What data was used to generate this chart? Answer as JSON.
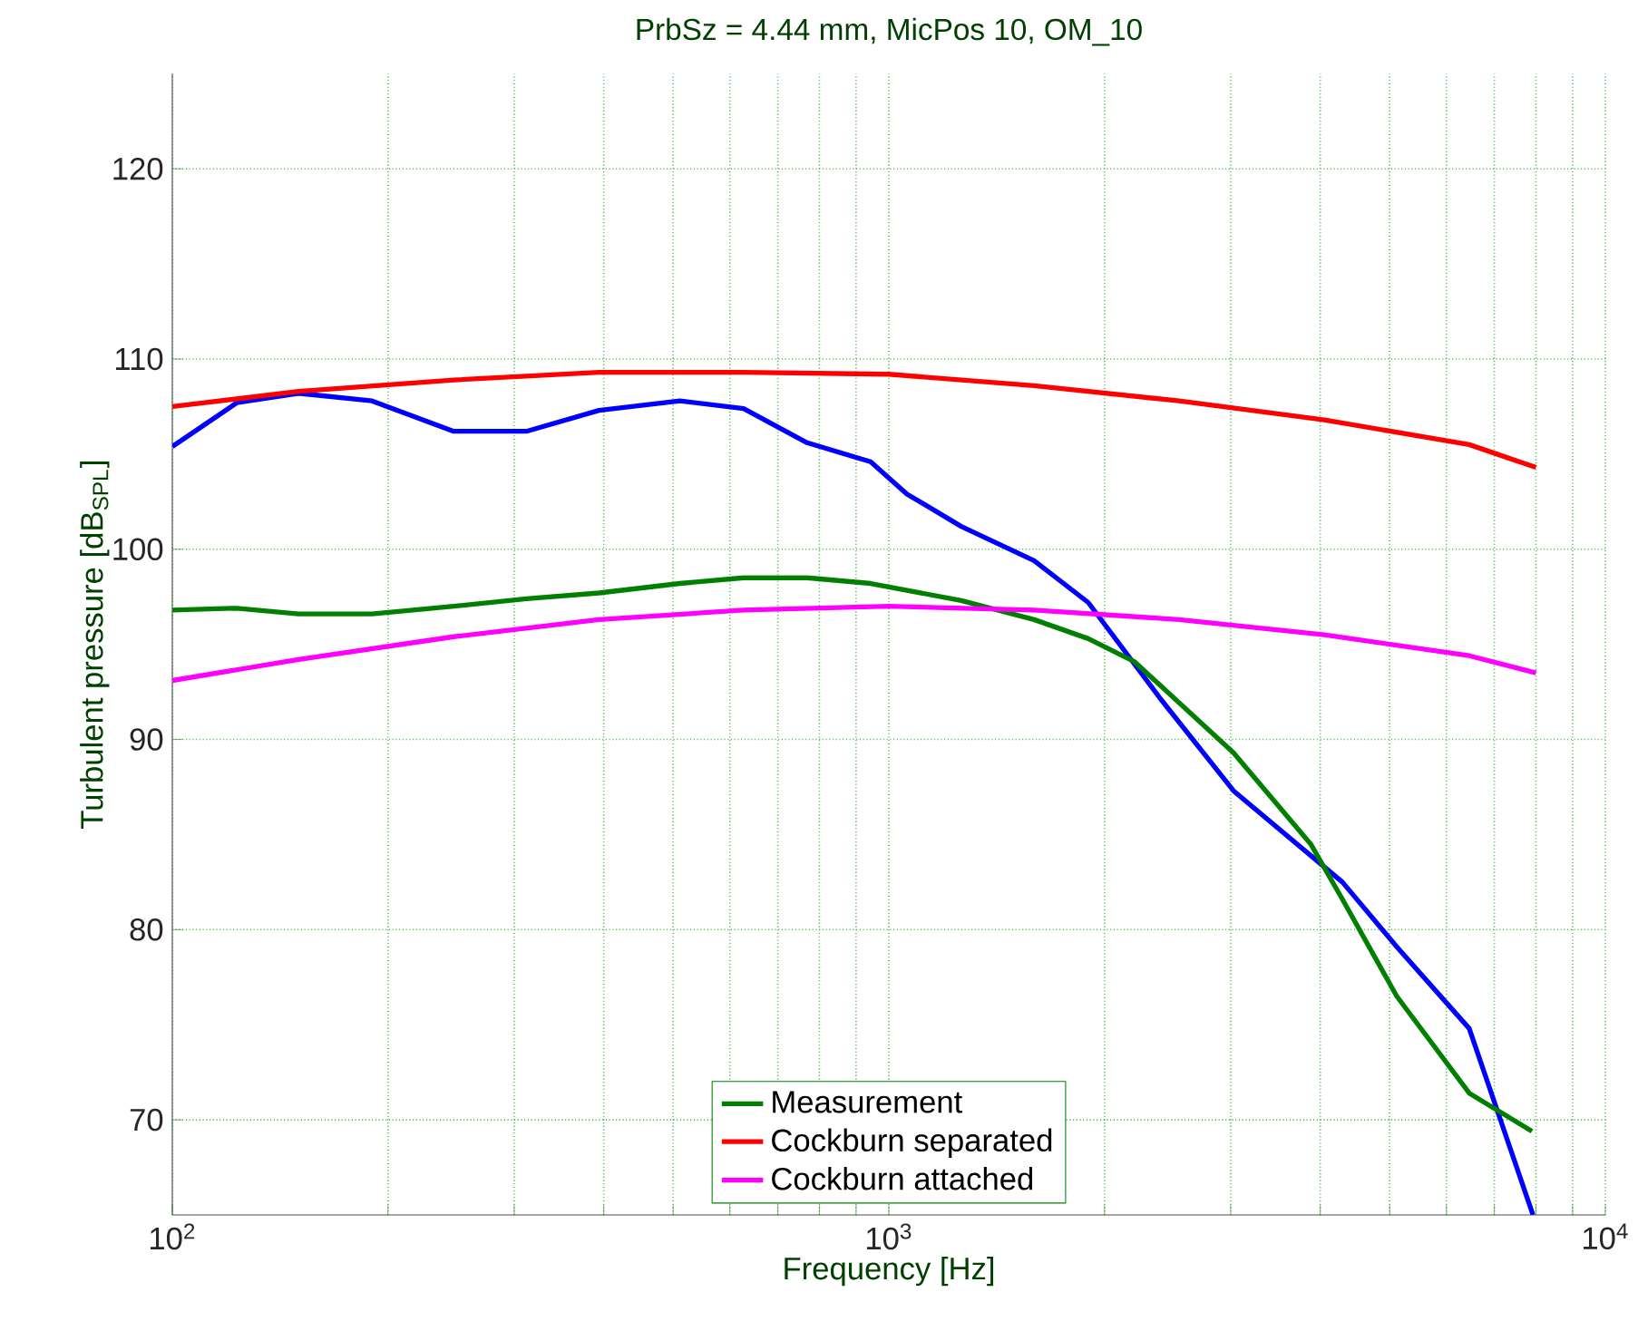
{
  "chart_data": {
    "type": "line",
    "title": "PrbSz = 4.44 mm, MicPos 10, OM_10",
    "xlabel": "Frequency [Hz]",
    "ylabel": "Turbulent pressure [dB$_{SPL}$]",
    "log": "x",
    "xlim": [
      100,
      10000
    ],
    "xticks": [
      {
        "value": 100,
        "label": "10$^{2}$"
      },
      {
        "value": 200,
        "label": null
      },
      {
        "value": 300,
        "label": null
      },
      {
        "value": 400,
        "label": null
      },
      {
        "value": 500,
        "label": null
      },
      {
        "value": 600,
        "label": null
      },
      {
        "value": 700,
        "label": null
      },
      {
        "value": 800,
        "label": null
      },
      {
        "value": 900,
        "label": null
      },
      {
        "value": 1000,
        "label": "10$^{3}$"
      },
      {
        "value": 2000,
        "label": null
      },
      {
        "value": 3000,
        "label": null
      },
      {
        "value": 4000,
        "label": null
      },
      {
        "value": 5000,
        "label": null
      },
      {
        "value": 6000,
        "label": null
      },
      {
        "value": 7000,
        "label": null
      },
      {
        "value": 8000,
        "label": null
      },
      {
        "value": 9000,
        "label": null
      },
      {
        "value": 10000,
        "label": "10$^{4}$"
      }
    ],
    "ylim": [
      65,
      125
    ],
    "yticks": [
      70,
      80,
      90,
      100,
      110,
      120
    ],
    "grid": true,
    "legend": "bottom",
    "line_style": "solid",
    "marker": "none",
    "series": [
      {
        "color": "#0000ff",
        "x": [
          100,
          123,
          150,
          190,
          247,
          312,
          394,
          511,
          627,
          769,
          943,
          1060,
          1262,
          1595,
          1898,
          2398,
          3027,
          4295,
          5115,
          6457,
          7925
        ],
        "values": [
          105.4,
          107.7,
          108.2,
          107.8,
          106.2,
          106.2,
          107.3,
          107.8,
          107.4,
          105.6,
          104.6,
          102.9,
          101.2,
          99.4,
          97.2,
          92.1,
          87.3,
          82.5,
          79.1,
          74.8,
          65
        ]
      },
      {
        "name": "Measurement",
        "color": "#007f00",
        "x": [
          100,
          123,
          150,
          190,
          247,
          312,
          394,
          511,
          627,
          769,
          943,
          1262,
          1595,
          1898,
          2200,
          3027,
          3880,
          4295,
          5115,
          6457,
          7900
        ],
        "values": [
          96.8,
          96.9,
          96.6,
          96.6,
          97.0,
          97.4,
          97.7,
          98.2,
          98.5,
          98.5,
          98.2,
          97.3,
          96.3,
          95.3,
          94.1,
          89.3,
          84.5,
          81.6,
          76.5,
          71.4,
          69.4
        ]
      },
      {
        "name": "Cockburn separated",
        "color": "#ff0000",
        "x": [
          100,
          150,
          247,
          394,
          627,
          1000,
          1595,
          2541,
          4053,
          6457,
          8000
        ],
        "values": [
          107.5,
          108.3,
          108.9,
          109.3,
          109.3,
          109.2,
          108.6,
          107.8,
          106.8,
          105.5,
          104.3
        ]
      },
      {
        "name": "Cockburn attached",
        "color": "#ff00ff",
        "x": [
          100,
          150,
          247,
          394,
          627,
          1000,
          1595,
          2541,
          4053,
          6457,
          8000
        ],
        "values": [
          93.1,
          94.2,
          95.4,
          96.3,
          96.8,
          97.0,
          96.8,
          96.3,
          95.5,
          94.4,
          93.5
        ]
      }
    ]
  }
}
